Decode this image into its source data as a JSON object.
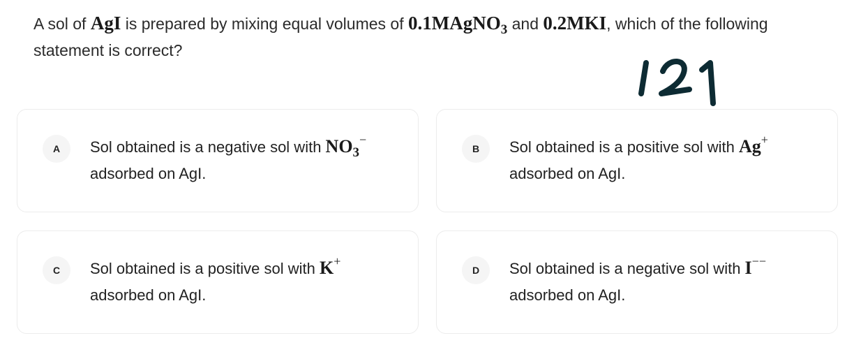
{
  "question": {
    "text_1": "A sol of ",
    "formula_1": "AgI",
    "text_2": " is prepared by mixing equal volumes of ",
    "formula_2": "0.1MAgNO",
    "formula_2_sub": "3",
    "text_3": " and ",
    "formula_3": "0.2MKI",
    "text_4": ", which of the following statement is correct?"
  },
  "annotation": {
    "handwritten_number": "121"
  },
  "options": [
    {
      "badge": "A",
      "text_before": "Sol obtained is a negative sol with ",
      "formula": "NO",
      "formula_sub": "3",
      "formula_sup": "−",
      "text_after": "adsorbed on AgI."
    },
    {
      "badge": "B",
      "text_before": "Sol obtained is a positive sol with ",
      "formula": "Ag",
      "formula_sup": "+",
      "text_after": "adsorbed on AgI."
    },
    {
      "badge": "C",
      "text_before": "Sol obtained is a positive sol with ",
      "formula": "K",
      "formula_sup": "+",
      "text_after": "adsorbed on AgI."
    },
    {
      "badge": "D",
      "text_before": "Sol obtained is a negative sol with ",
      "formula": "I",
      "formula_sup": "−−",
      "text_after": "adsorbed on AgI."
    }
  ]
}
